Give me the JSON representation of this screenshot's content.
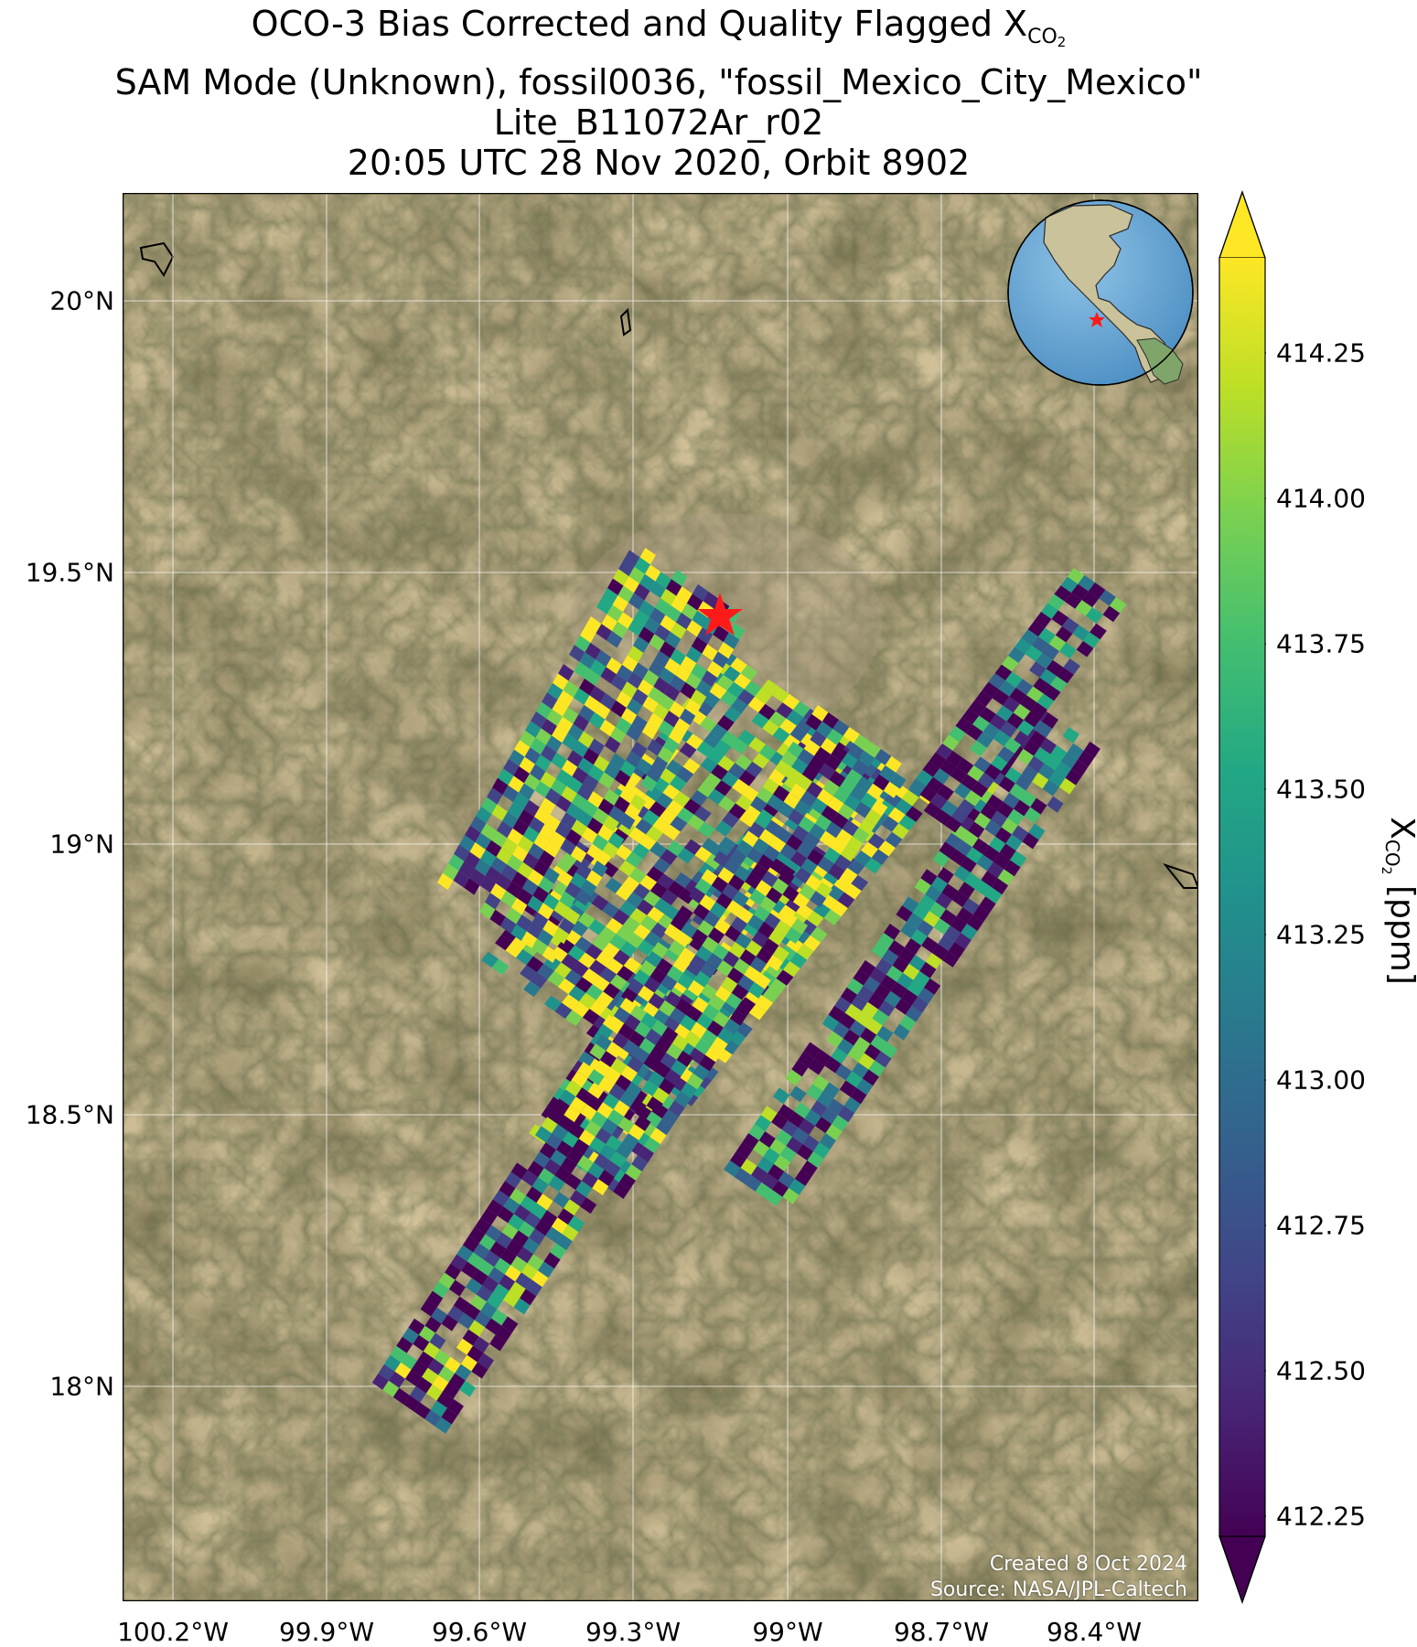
{
  "title": {
    "line1_prefix": "OCO-3 Bias Corrected and Quality Flagged X",
    "line1_sub": "CO",
    "line1_sub2": "2",
    "line2": "SAM Mode (Unknown), fossil0036, \"fossil_Mexico_City_Mexico\"",
    "line3": "Lite_B11072Ar_r02",
    "line4": "20:05 UTC 28 Nov 2020, Orbit 8902"
  },
  "map": {
    "lat_ticks": [
      "20°N",
      "19.5°N",
      "19°N",
      "18.5°N",
      "18°N"
    ],
    "lon_ticks": [
      "100.2°W",
      "99.9°W",
      "99.6°W",
      "99.3°W",
      "99°W",
      "98.7°W",
      "98.4°W"
    ],
    "target_marker": "red-star",
    "target_color": "#ff0000",
    "basemap": "satellite-imagery",
    "gridlines": true,
    "inset_globe": "north-america-globe-with-red-star"
  },
  "colorbar": {
    "colormap": "viridis",
    "extend": "both",
    "ticks": [
      "414.25",
      "414.00",
      "413.75",
      "413.50",
      "413.25",
      "413.00",
      "412.75",
      "412.50",
      "412.25"
    ],
    "label_prefix": "X",
    "label_sub": "CO",
    "label_sub2": "2",
    "label_suffix": " [ppm]"
  },
  "credit": {
    "created": "Created 8 Oct 2024",
    "source": "Source: NASA/JPL-Caltech"
  }
}
